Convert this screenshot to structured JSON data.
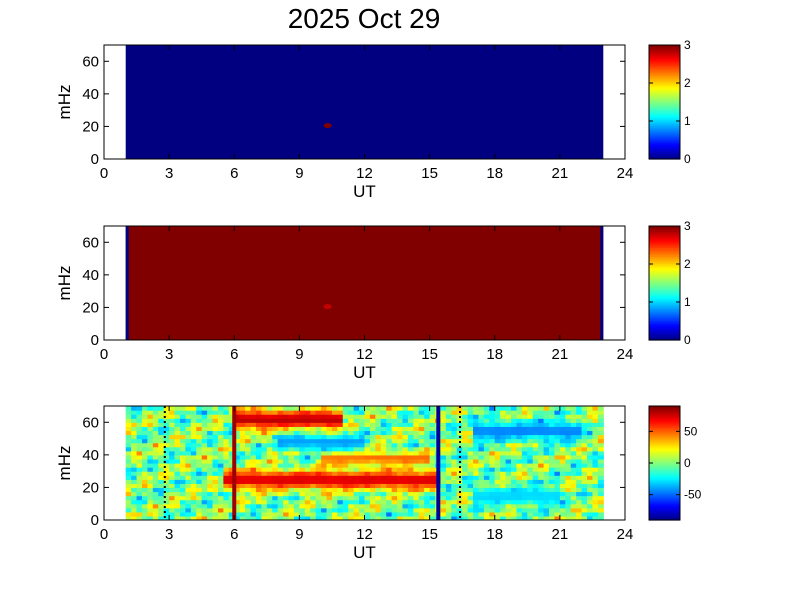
{
  "title": "2025 Oct 29",
  "colors": {
    "low": "#00008f",
    "high": "#7f0000",
    "frame": "#000000"
  },
  "chart_data": [
    {
      "type": "heatmap",
      "name": "panel-1",
      "xlabel": "UT",
      "ylabel": "mHz",
      "xlim": [
        0,
        24
      ],
      "ylim": [
        0,
        70
      ],
      "xticks": [
        "0",
        "3",
        "6",
        "9",
        "12",
        "15",
        "18",
        "21",
        "24"
      ],
      "yticks": [
        "0",
        "20",
        "40",
        "60"
      ],
      "data_extent_ut": [
        1,
        23
      ],
      "fill_value": 0,
      "features": [
        {
          "ut": 10.3,
          "mhz": 20.5,
          "value": 3
        }
      ],
      "colorbar": {
        "range": [
          0,
          3
        ],
        "ticks": [
          "0",
          "1",
          "2",
          "3"
        ],
        "colormap": "jet"
      }
    },
    {
      "type": "heatmap",
      "name": "panel-2",
      "xlabel": "UT",
      "ylabel": "mHz",
      "xlim": [
        0,
        24
      ],
      "ylim": [
        0,
        70
      ],
      "xticks": [
        "0",
        "3",
        "6",
        "9",
        "12",
        "15",
        "18",
        "21",
        "24"
      ],
      "yticks": [
        "0",
        "20",
        "40",
        "60"
      ],
      "data_extent_ut": [
        1,
        23
      ],
      "fill_value": 3,
      "edge_value": 0,
      "features": [
        {
          "ut": 10.3,
          "mhz": 20.5,
          "value": 2.8
        }
      ],
      "colorbar": {
        "range": [
          0,
          3
        ],
        "ticks": [
          "0",
          "1",
          "2",
          "3"
        ],
        "colormap": "jet"
      }
    },
    {
      "type": "heatmap",
      "name": "panel-3",
      "xlabel": "UT",
      "ylabel": "mHz",
      "xlim": [
        0,
        24
      ],
      "ylim": [
        0,
        70
      ],
      "xticks": [
        "0",
        "3",
        "6",
        "9",
        "12",
        "15",
        "18",
        "21",
        "24"
      ],
      "yticks": [
        "0",
        "20",
        "40",
        "60"
      ],
      "data_extent_ut": [
        1,
        23
      ],
      "bands": [
        {
          "mhz": 25,
          "width": 6,
          "ut_range": [
            5.5,
            15.5
          ],
          "value": 75
        },
        {
          "mhz": 38,
          "width": 4,
          "ut_range": [
            10,
            15
          ],
          "value": 50
        },
        {
          "mhz": 62,
          "width": 6,
          "ut_range": [
            6,
            11
          ],
          "value": 80
        },
        {
          "mhz": 48,
          "width": 5,
          "ut_range": [
            8,
            12
          ],
          "value": -40
        },
        {
          "mhz": 55,
          "width": 6,
          "ut_range": [
            17,
            22
          ],
          "value": -45
        },
        {
          "mhz": 15,
          "width": 6,
          "ut_range": [
            17,
            21
          ],
          "value": -30
        }
      ],
      "vertical_lines": [
        {
          "ut": 6.0,
          "value": 85
        },
        {
          "ut": 15.4,
          "value": -85
        }
      ],
      "dotted_lines_ut": [
        2.8,
        16.4
      ],
      "colorbar": {
        "range": [
          -90,
          90
        ],
        "ticks": [
          "50",
          "0",
          "-50"
        ],
        "tick_values": [
          50,
          0,
          -50
        ],
        "colormap": "jet"
      }
    }
  ]
}
